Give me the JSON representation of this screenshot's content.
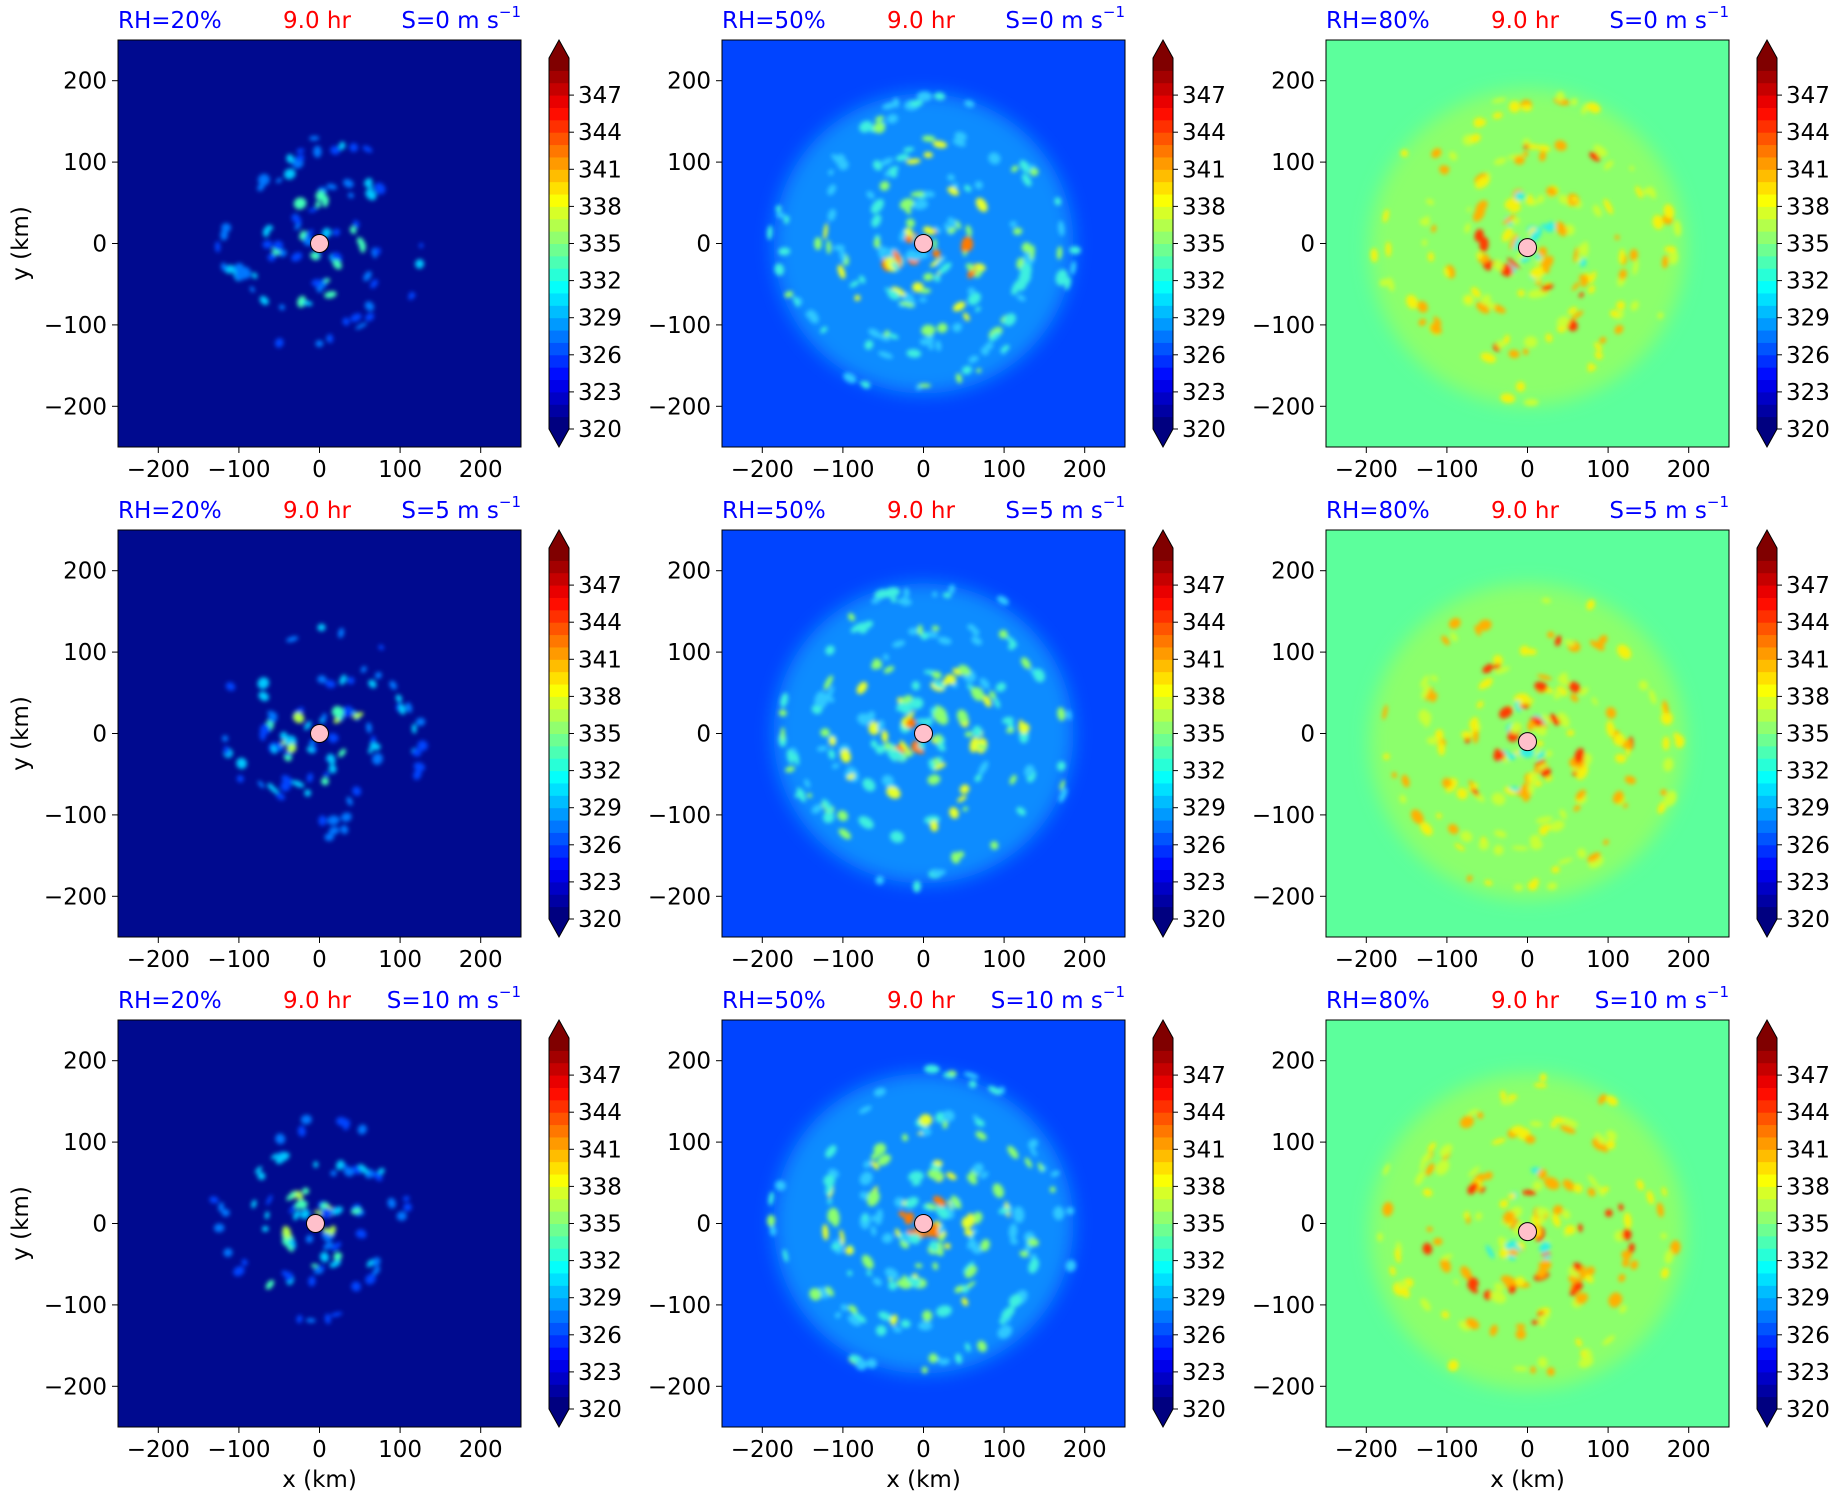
{
  "figure": {
    "rows": [
      {
        "shear_label": "S=0 m s",
        "shear_exp": "−1"
      },
      {
        "shear_label": "S=5 m s",
        "shear_exp": "−1"
      },
      {
        "shear_label": "S=10 m s",
        "shear_exp": "−1"
      }
    ],
    "cols": [
      {
        "rh_label": "RH=20%",
        "bg_color": "#000a8f",
        "ring_color": "#0022d8",
        "blob_colors": [
          "#0044ff",
          "#0077ff",
          "#00c8ff",
          "#40ffb8",
          "#b0ff48"
        ]
      },
      {
        "rh_label": "RH=50%",
        "bg_color": "#0044ff",
        "ring_color": "#0a8cff",
        "blob_colors": [
          "#2ec8ff",
          "#3cf0e0",
          "#8cff6e",
          "#e6ff2a",
          "#ff7a00"
        ]
      },
      {
        "rh_label": "RH=80%",
        "bg_color": "#5cff9c",
        "ring_color": "#8cff6c",
        "blob_colors": [
          "#c8ff36",
          "#f4f20e",
          "#ffb000",
          "#ff3a00",
          "#30f0e0"
        ]
      }
    ],
    "time_label": "9.0 hr",
    "time_color": "#ff0000",
    "label_color": "#0000ff",
    "xlabel": "x (km)",
    "ylabel": "y (km)",
    "center_marker_color": "#ffc0cb"
  },
  "chart_data": {
    "type": "heatmap",
    "layout": "3x3 grid of filled-contour panels",
    "x_ticks": [
      -200,
      -100,
      0,
      100,
      200
    ],
    "y_ticks": [
      -200,
      -100,
      0,
      100,
      200
    ],
    "xlim": [
      -250,
      250
    ],
    "ylim": [
      -250,
      250
    ],
    "colorbar": {
      "ticks": [
        347,
        344,
        341,
        338,
        335,
        332,
        329,
        326,
        323,
        320
      ],
      "range": [
        320,
        350
      ],
      "extend": "both",
      "colormap": "jet"
    },
    "panels": [
      {
        "rh": "RH=20%",
        "time": "9.0 hr",
        "shear": "S=0 m s−1",
        "center": [
          0,
          0
        ]
      },
      {
        "rh": "RH=50%",
        "time": "9.0 hr",
        "shear": "S=0 m s−1",
        "center": [
          0,
          0
        ]
      },
      {
        "rh": "RH=80%",
        "time": "9.0 hr",
        "shear": "S=0 m s−1",
        "center": [
          0,
          -5
        ]
      },
      {
        "rh": "RH=20%",
        "time": "9.0 hr",
        "shear": "S=5 m s−1",
        "center": [
          0,
          0
        ]
      },
      {
        "rh": "RH=50%",
        "time": "9.0 hr",
        "shear": "S=5 m s−1",
        "center": [
          0,
          0
        ]
      },
      {
        "rh": "RH=80%",
        "time": "9.0 hr",
        "shear": "S=5 m s−1",
        "center": [
          0,
          -10
        ]
      },
      {
        "rh": "RH=20%",
        "time": "9.0 hr",
        "shear": "S=10 m s−1",
        "center": [
          -5,
          0
        ]
      },
      {
        "rh": "RH=50%",
        "time": "9.0 hr",
        "shear": "S=10 m s−1",
        "center": [
          0,
          0
        ]
      },
      {
        "rh": "RH=80%",
        "time": "9.0 hr",
        "shear": "S=10 m s−1",
        "center": [
          0,
          -10
        ]
      }
    ]
  }
}
